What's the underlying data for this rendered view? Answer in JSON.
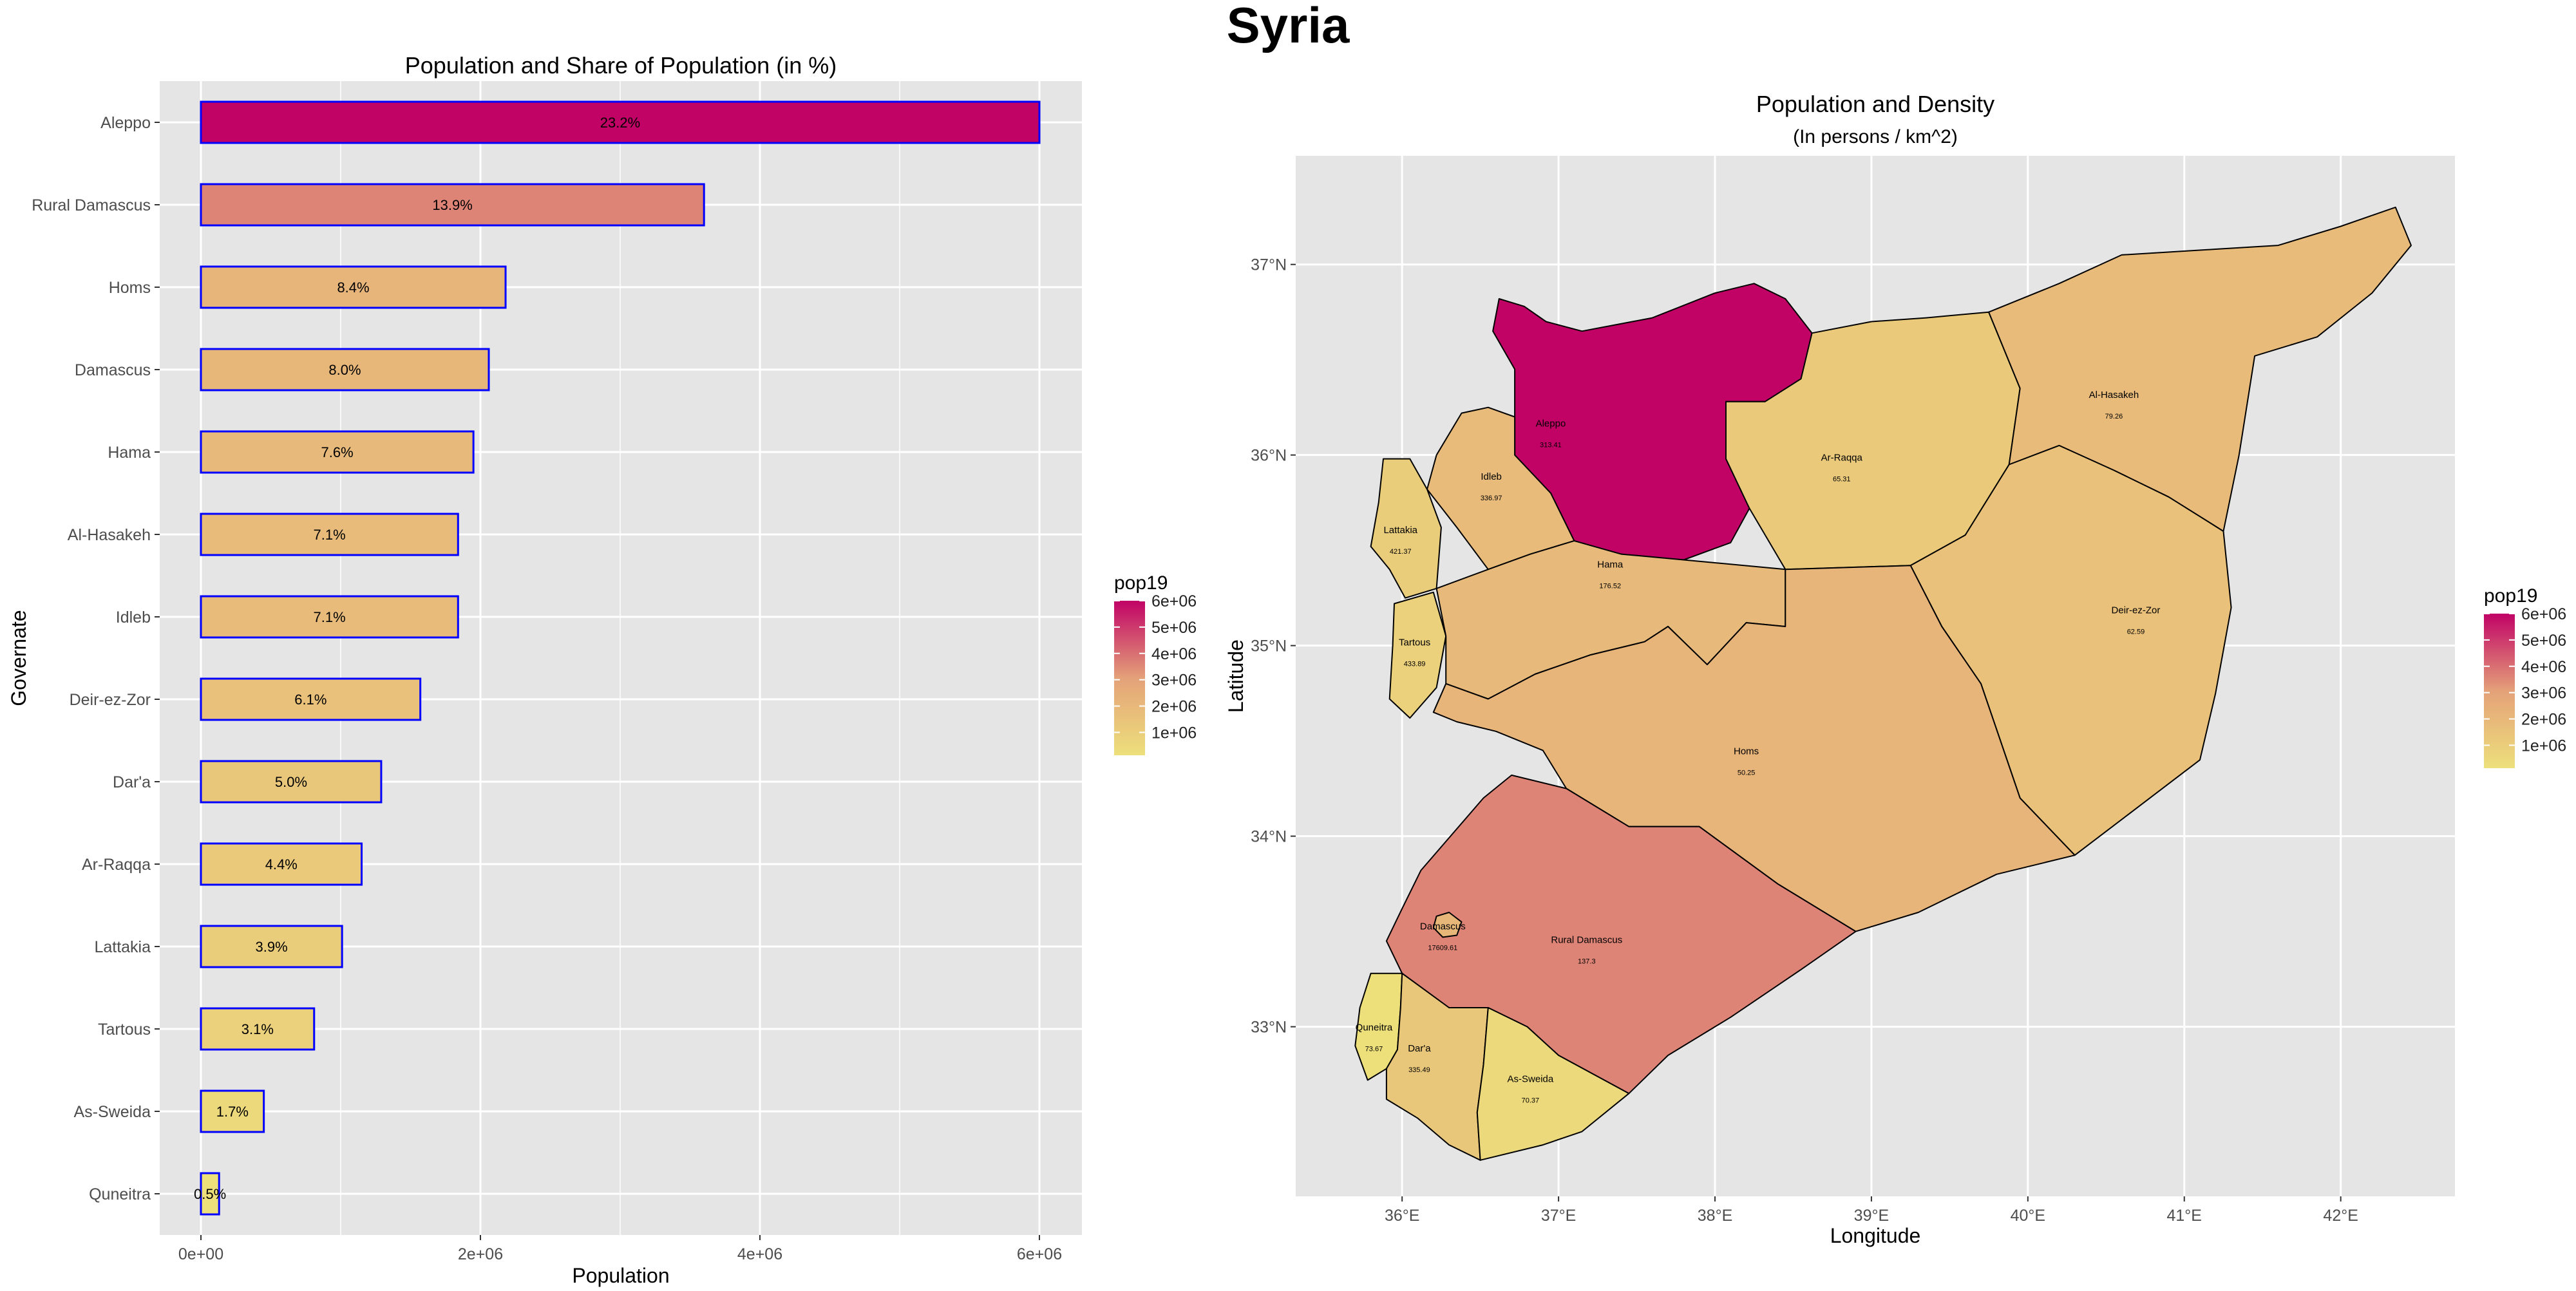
{
  "figure": {
    "title": "Syria"
  },
  "colors": {
    "panel_bg": "#e5e5e5",
    "grid_major": "#ffffff",
    "bar_outline": "#0000ff",
    "scale_low": "#ede07b",
    "scale_mid": "#e4a179",
    "scale_high": "#c10366",
    "map_outline": "#000000"
  },
  "chart_data": [
    {
      "type": "bar",
      "orientation": "horizontal",
      "title": "Population and Share of Population (in %)",
      "xlabel": "Population",
      "ylabel": "Governate",
      "xlim": [
        0,
        6000000
      ],
      "x_ticks": [
        0,
        2000000,
        4000000,
        6000000
      ],
      "x_tick_labels": [
        "0e+00",
        "2e+06",
        "4e+06",
        "6e+06"
      ],
      "categories": [
        "Aleppo",
        "Rural Damascus",
        "Homs",
        "Damascus",
        "Hama",
        "Al-Hasakeh",
        "Idleb",
        "Deir-ez-Zor",
        "Dar'a",
        "Ar-Raqqa",
        "Lattakia",
        "Tartous",
        "As-Sweida",
        "Quneitra"
      ],
      "values": [
        6000000,
        3600000,
        2180000,
        2060000,
        1950000,
        1840000,
        1840000,
        1570000,
        1290000,
        1150000,
        1010000,
        810000,
        450000,
        130000
      ],
      "labels": [
        "23.2%",
        "13.9%",
        "8.4%",
        "8.0%",
        "7.6%",
        "7.1%",
        "7.1%",
        "6.1%",
        "5.0%",
        "4.4%",
        "3.9%",
        "3.1%",
        "1.7%",
        "0.5%"
      ],
      "legend": {
        "title": "pop19",
        "position": "right",
        "ticks": [
          1000000,
          2000000,
          3000000,
          4000000,
          5000000,
          6000000
        ],
        "tick_labels": [
          "1e+06",
          "2e+06",
          "3e+06",
          "4e+06",
          "5e+06",
          "6e+06"
        ],
        "range": [
          130000,
          6000000
        ]
      },
      "grid": true
    },
    {
      "type": "choropleth",
      "title": "Population and Density",
      "subtitle": "(In persons / km^2)",
      "xlabel": "Longitude",
      "ylabel": "Latitude",
      "xlim": [
        35.32,
        42.73
      ],
      "ylim": [
        32.11,
        37.57
      ],
      "x_ticks": [
        36,
        37,
        38,
        39,
        40,
        41,
        42
      ],
      "x_tick_labels": [
        "36°E",
        "37°E",
        "38°E",
        "39°E",
        "40°E",
        "41°E",
        "42°E"
      ],
      "y_ticks": [
        33,
        34,
        35,
        36,
        37
      ],
      "y_tick_labels": [
        "33°N",
        "34°N",
        "35°N",
        "36°N",
        "37°N"
      ],
      "regions": [
        {
          "name": "Aleppo",
          "density": "313.41",
          "pop19": 6000000,
          "label_lon": 36.95,
          "label_lat": 36.15,
          "polygon": [
            [
              36.62,
              36.82
            ],
            [
              36.78,
              36.78
            ],
            [
              36.92,
              36.7
            ],
            [
              37.15,
              36.65
            ],
            [
              37.6,
              36.72
            ],
            [
              38.0,
              36.85
            ],
            [
              38.25,
              36.9
            ],
            [
              38.45,
              36.82
            ],
            [
              38.62,
              36.64
            ],
            [
              38.55,
              36.4
            ],
            [
              38.32,
              36.28
            ],
            [
              38.07,
              36.28
            ],
            [
              38.07,
              35.98
            ],
            [
              38.22,
              35.72
            ],
            [
              38.1,
              35.54
            ],
            [
              37.8,
              35.45
            ],
            [
              37.4,
              35.48
            ],
            [
              37.1,
              35.55
            ],
            [
              36.95,
              35.8
            ],
            [
              36.72,
              36.0
            ],
            [
              36.72,
              36.45
            ],
            [
              36.58,
              36.65
            ]
          ]
        },
        {
          "name": "Idleb",
          "density": "336.97",
          "pop19": 1840000,
          "label_lon": 36.57,
          "label_lat": 35.87,
          "polygon": [
            [
              36.38,
              36.22
            ],
            [
              36.55,
              36.25
            ],
            [
              36.72,
              36.2
            ],
            [
              36.72,
              36.0
            ],
            [
              36.95,
              35.8
            ],
            [
              37.1,
              35.55
            ],
            [
              36.82,
              35.48
            ],
            [
              36.55,
              35.4
            ],
            [
              36.35,
              35.62
            ],
            [
              36.16,
              35.82
            ],
            [
              36.22,
              36.0
            ]
          ]
        },
        {
          "name": "Lattakia",
          "density": "421.37",
          "pop19": 1010000,
          "label_lon": 35.99,
          "label_lat": 35.59,
          "polygon": [
            [
              35.88,
              35.98
            ],
            [
              36.05,
              35.98
            ],
            [
              36.16,
              35.82
            ],
            [
              36.25,
              35.62
            ],
            [
              36.22,
              35.3
            ],
            [
              36.02,
              35.25
            ],
            [
              35.92,
              35.4
            ],
            [
              35.8,
              35.52
            ],
            [
              35.85,
              35.75
            ]
          ]
        },
        {
          "name": "Tartous",
          "density": "433.89",
          "pop19": 810000,
          "label_lon": 36.08,
          "label_lat": 35.0,
          "polygon": [
            [
              35.95,
              35.22
            ],
            [
              36.2,
              35.28
            ],
            [
              36.28,
              35.05
            ],
            [
              36.22,
              34.78
            ],
            [
              36.05,
              34.62
            ],
            [
              35.92,
              34.72
            ],
            [
              35.94,
              35.0
            ]
          ]
        },
        {
          "name": "Hama",
          "density": "176.52",
          "pop19": 1950000,
          "label_lon": 37.33,
          "label_lat": 35.41,
          "polygon": [
            [
              36.22,
              35.3
            ],
            [
              36.55,
              35.4
            ],
            [
              36.82,
              35.48
            ],
            [
              37.1,
              35.55
            ],
            [
              37.4,
              35.48
            ],
            [
              37.8,
              35.45
            ],
            [
              38.45,
              35.4
            ],
            [
              38.45,
              35.1
            ],
            [
              38.2,
              35.12
            ],
            [
              37.95,
              34.9
            ],
            [
              37.7,
              35.1
            ],
            [
              37.55,
              35.02
            ],
            [
              37.2,
              34.95
            ],
            [
              36.85,
              34.85
            ],
            [
              36.55,
              34.72
            ],
            [
              36.28,
              34.8
            ],
            [
              36.28,
              35.05
            ]
          ]
        },
        {
          "name": "Ar-Raqqa",
          "density": "65.31",
          "pop19": 1150000,
          "label_lon": 38.81,
          "label_lat": 35.97,
          "polygon": [
            [
              38.62,
              36.64
            ],
            [
              39.0,
              36.7
            ],
            [
              39.35,
              36.72
            ],
            [
              39.75,
              36.75
            ],
            [
              39.95,
              36.35
            ],
            [
              39.88,
              35.95
            ],
            [
              39.6,
              35.58
            ],
            [
              39.25,
              35.42
            ],
            [
              38.45,
              35.4
            ],
            [
              38.22,
              35.72
            ],
            [
              38.07,
              35.98
            ],
            [
              38.07,
              36.28
            ],
            [
              38.32,
              36.28
            ],
            [
              38.55,
              36.4
            ]
          ]
        },
        {
          "name": "Al-Hasakeh",
          "density": "79.26",
          "pop19": 1840000,
          "label_lon": 40.55,
          "label_lat": 36.3,
          "polygon": [
            [
              39.75,
              36.75
            ],
            [
              40.2,
              36.9
            ],
            [
              40.6,
              37.05
            ],
            [
              41.2,
              37.08
            ],
            [
              41.6,
              37.1
            ],
            [
              42.0,
              37.2
            ],
            [
              42.35,
              37.3
            ],
            [
              42.45,
              37.1
            ],
            [
              42.2,
              36.85
            ],
            [
              41.85,
              36.62
            ],
            [
              41.45,
              36.52
            ],
            [
              41.35,
              36.0
            ],
            [
              41.25,
              35.6
            ],
            [
              40.9,
              35.78
            ],
            [
              40.55,
              35.92
            ],
            [
              40.2,
              36.05
            ],
            [
              39.88,
              35.95
            ],
            [
              39.95,
              36.35
            ]
          ]
        },
        {
          "name": "Deir-ez-Zor",
          "density": "62.59",
          "pop19": 1570000,
          "label_lon": 40.69,
          "label_lat": 35.17,
          "polygon": [
            [
              39.25,
              35.42
            ],
            [
              39.6,
              35.58
            ],
            [
              39.88,
              35.95
            ],
            [
              40.2,
              36.05
            ],
            [
              40.55,
              35.92
            ],
            [
              40.9,
              35.78
            ],
            [
              41.25,
              35.6
            ],
            [
              41.3,
              35.2
            ],
            [
              41.2,
              34.75
            ],
            [
              41.1,
              34.4
            ],
            [
              40.7,
              34.15
            ],
            [
              40.3,
              33.9
            ],
            [
              39.95,
              34.2
            ],
            [
              39.7,
              34.8
            ],
            [
              39.45,
              35.1
            ]
          ]
        },
        {
          "name": "Homs",
          "density": "50.25",
          "pop19": 2180000,
          "label_lon": 38.2,
          "label_lat": 34.43,
          "polygon": [
            [
              36.28,
              34.8
            ],
            [
              36.55,
              34.72
            ],
            [
              36.85,
              34.85
            ],
            [
              37.2,
              34.95
            ],
            [
              37.55,
              35.02
            ],
            [
              37.7,
              35.1
            ],
            [
              37.95,
              34.9
            ],
            [
              38.2,
              35.12
            ],
            [
              38.45,
              35.1
            ],
            [
              38.45,
              35.4
            ],
            [
              39.25,
              35.42
            ],
            [
              39.45,
              35.1
            ],
            [
              39.7,
              34.8
            ],
            [
              39.95,
              34.2
            ],
            [
              40.3,
              33.9
            ],
            [
              39.8,
              33.8
            ],
            [
              39.3,
              33.6
            ],
            [
              38.9,
              33.5
            ],
            [
              38.4,
              33.75
            ],
            [
              37.9,
              34.05
            ],
            [
              37.45,
              34.05
            ],
            [
              37.05,
              34.25
            ],
            [
              36.9,
              34.45
            ],
            [
              36.6,
              34.55
            ],
            [
              36.35,
              34.6
            ],
            [
              36.2,
              34.65
            ]
          ]
        },
        {
          "name": "Rural Damascus",
          "density": "137.3",
          "pop19": 3600000,
          "label_lon": 37.18,
          "label_lat": 33.44,
          "polygon": [
            [
              36.52,
              34.2
            ],
            [
              36.7,
              34.32
            ],
            [
              37.05,
              34.25
            ],
            [
              37.45,
              34.05
            ],
            [
              37.9,
              34.05
            ],
            [
              38.4,
              33.75
            ],
            [
              38.9,
              33.5
            ],
            [
              38.55,
              33.3
            ],
            [
              38.1,
              33.05
            ],
            [
              37.7,
              32.85
            ],
            [
              37.45,
              32.65
            ],
            [
              37.0,
              32.85
            ],
            [
              36.8,
              33.0
            ],
            [
              36.55,
              33.1
            ],
            [
              36.3,
              33.1
            ],
            [
              36.0,
              33.28
            ],
            [
              35.9,
              33.45
            ],
            [
              36.0,
              33.62
            ],
            [
              36.12,
              33.82
            ]
          ]
        },
        {
          "name": "Damascus",
          "density": "17609.61",
          "pop19": 2060000,
          "label_lon": 36.26,
          "label_lat": 33.51,
          "polygon": [
            [
              36.22,
              33.58
            ],
            [
              36.3,
              33.6
            ],
            [
              36.38,
              33.55
            ],
            [
              36.35,
              33.48
            ],
            [
              36.26,
              33.47
            ],
            [
              36.2,
              33.52
            ]
          ]
        },
        {
          "name": "Quneitra",
          "density": "73.67",
          "pop19": 130000,
          "label_lon": 35.82,
          "label_lat": 32.98,
          "polygon": [
            [
              35.8,
              33.28
            ],
            [
              36.0,
              33.28
            ],
            [
              35.99,
              33.1
            ],
            [
              35.97,
              32.88
            ],
            [
              35.9,
              32.78
            ],
            [
              35.78,
              32.72
            ],
            [
              35.7,
              32.9
            ],
            [
              35.73,
              33.1
            ]
          ]
        },
        {
          "name": "Dar'a",
          "density": "335.49",
          "pop19": 1290000,
          "label_lon": 36.11,
          "label_lat": 32.87,
          "polygon": [
            [
              36.0,
              33.28
            ],
            [
              36.3,
              33.1
            ],
            [
              36.55,
              33.1
            ],
            [
              36.52,
              32.8
            ],
            [
              36.48,
              32.55
            ],
            [
              36.5,
              32.3
            ],
            [
              36.3,
              32.38
            ],
            [
              36.1,
              32.52
            ],
            [
              35.9,
              32.62
            ],
            [
              35.9,
              32.78
            ],
            [
              35.97,
              32.88
            ],
            [
              35.99,
              33.1
            ]
          ]
        },
        {
          "name": "As-Sweida",
          "density": "70.37",
          "pop19": 450000,
          "label_lon": 36.82,
          "label_lat": 32.71,
          "polygon": [
            [
              36.55,
              33.1
            ],
            [
              36.8,
              33.0
            ],
            [
              37.0,
              32.85
            ],
            [
              37.45,
              32.65
            ],
            [
              37.15,
              32.45
            ],
            [
              36.9,
              32.38
            ],
            [
              36.5,
              32.3
            ],
            [
              36.48,
              32.55
            ],
            [
              36.52,
              32.8
            ]
          ]
        }
      ],
      "legend": {
        "title": "pop19",
        "position": "right",
        "ticks": [
          1000000,
          2000000,
          3000000,
          4000000,
          5000000,
          6000000
        ],
        "tick_labels": [
          "1e+06",
          "2e+06",
          "3e+06",
          "4e+06",
          "5e+06",
          "6e+06"
        ],
        "range": [
          130000,
          6000000
        ]
      },
      "grid": true
    }
  ]
}
